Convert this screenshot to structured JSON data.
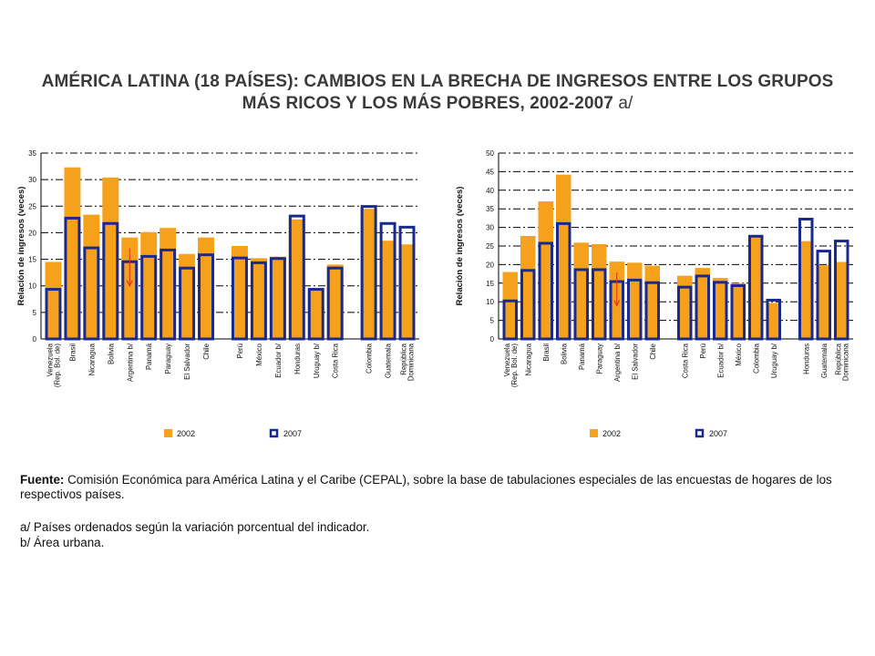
{
  "title": {
    "line1": "AMÉRICA LATINA (18 PAÍSES): CAMBIOS EN LA BRECHA DE INGRESOS ENTRE LOS GRUPOS",
    "line2": "MÁS RICOS Y LOS MÁS POBRES, 2002-2007",
    "note": "a/"
  },
  "colors": {
    "y2002": "#f5a11c",
    "y2007": "#1a2a8a",
    "arrow": "#e8281c",
    "grid": "#000000"
  },
  "chart_data": [
    {
      "type": "bar",
      "ylabel": "Relación de ingresos (veces)",
      "ylim": [
        0,
        35
      ],
      "yticks": [
        0,
        5,
        10,
        15,
        20,
        25,
        30,
        35
      ],
      "grid": "dash-dot horizontal",
      "legend_position": "bottom",
      "categories": [
        "Venezuela (Rep. Bol. de)",
        "Brasil",
        "Nicaragua",
        "Bolivia",
        "Argentina b/",
        "Panamá",
        "Paraguay",
        "El Salvador",
        "Chile",
        "Perú",
        "México",
        "Ecuador b/",
        "Honduras",
        "Uruguay b/",
        "Costa Rica",
        "Colombia",
        "Guatemala",
        "República Dominicana"
      ],
      "groups": [
        9,
        6,
        3
      ],
      "series": [
        {
          "name": "2002",
          "values": [
            14.5,
            32.3,
            23.4,
            30.4,
            19.1,
            20.1,
            20.9,
            16.0,
            19.1,
            17.5,
            15.2,
            15.5,
            22.5,
            9.3,
            14.0,
            24.5,
            18.5,
            17.8
          ]
        },
        {
          "name": "2007",
          "values": [
            9.6,
            23.0,
            17.4,
            22.0,
            14.8,
            15.8,
            17.0,
            13.6,
            16.1,
            15.5,
            14.6,
            15.4,
            23.4,
            9.6,
            13.6,
            25.2,
            22.0,
            21.3
          ]
        }
      ],
      "arrow_category": "Argentina b/"
    },
    {
      "type": "bar",
      "ylabel": "Relación de ingresos (veces)",
      "ylim": [
        0,
        50
      ],
      "yticks": [
        0,
        5,
        10,
        15,
        20,
        25,
        30,
        35,
        40,
        45,
        50
      ],
      "grid": "dash-dot horizontal",
      "legend_position": "bottom",
      "categories": [
        "Venezuela (Rep. Bol. de)",
        "Nicaragua",
        "Brasil",
        "Bolivia",
        "Panamá",
        "Paraguay",
        "Argentina b/",
        "El Salvador",
        "Chile",
        "Costa Rica",
        "Perú",
        "Ecuador b/",
        "México",
        "Colombia",
        "Uruguay b/",
        "Honduras",
        "Guatemala",
        "República Dominicana"
      ],
      "groups": [
        9,
        6,
        3
      ],
      "series": [
        {
          "name": "2002",
          "values": [
            18.0,
            27.7,
            37.0,
            44.2,
            25.9,
            25.5,
            20.8,
            20.5,
            19.7,
            17.0,
            19.1,
            16.4,
            15.0,
            27.4,
            9.7,
            26.3,
            19.8,
            20.7
          ]
        },
        {
          "name": "2007",
          "values": [
            10.6,
            18.8,
            26.1,
            31.4,
            19.0,
            19.0,
            15.8,
            16.2,
            15.5,
            14.3,
            17.3,
            15.6,
            14.7,
            28.0,
            10.8,
            32.6,
            24.0,
            26.7
          ]
        }
      ],
      "arrow_category": "Argentina b/"
    }
  ],
  "source": {
    "label": "Fuente:",
    "text": "Comisión Económica para América Latina y el Caribe (CEPAL), sobre la base de tabulaciones especiales de las encuestas de hogares de los respectivos países.",
    "notes": [
      "a/ Países ordenados según la variación porcentual del indicador.",
      "b/ Área urbana."
    ]
  }
}
